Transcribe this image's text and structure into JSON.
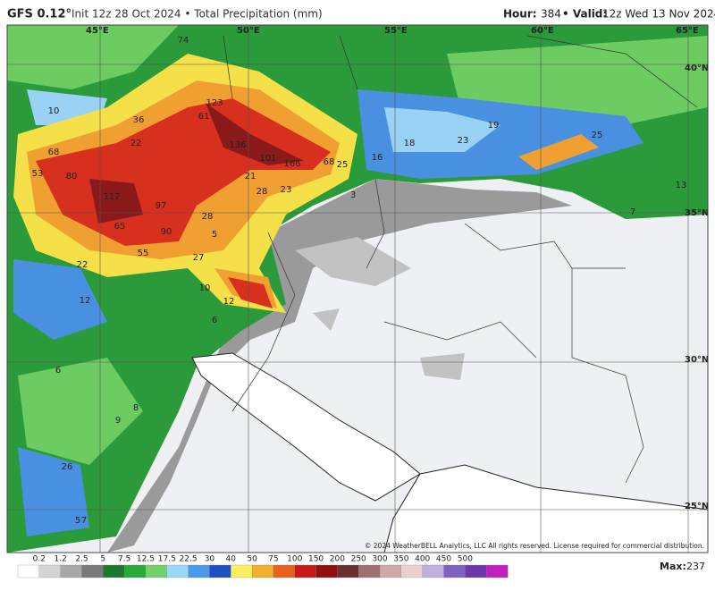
{
  "header": {
    "model": "GFS 0.12°",
    "title": "Init 12z 28 Oct 2024 • Total Precipitation (mm)",
    "hour_label": "Hour:",
    "hour": "384",
    "valid_label": "• Valid:",
    "valid": "12z Wed 13 Nov 2024"
  },
  "graticule": [
    "45°E",
    "50°E",
    "55°E",
    "60°E",
    "65°E",
    "40°N",
    "35°N",
    "30°N",
    "25°N"
  ],
  "map_values": [
    "74",
    "123",
    "61",
    "136",
    "101",
    "166",
    "68",
    "25",
    "16",
    "18",
    "19",
    "23",
    "25",
    "13",
    "7",
    "3",
    "80",
    "68",
    "53",
    "117",
    "97",
    "65",
    "90",
    "55",
    "27",
    "28",
    "21",
    "28",
    "23",
    "36",
    "22",
    "10",
    "22",
    "12",
    "10",
    "12",
    "6",
    "6",
    "9",
    "8",
    "26",
    "7",
    "5",
    "5"
  ],
  "copyright": "© 2024 WeatherBELL Analytics, LLC All rights reserved. License required for commercial distribution.",
  "colorbar": {
    "labels": [
      "0.2",
      "1.2",
      "2.5",
      "5",
      "7.5",
      "12.5",
      "17.5",
      "22.5",
      "30",
      "40",
      "50",
      "75",
      "100",
      "150",
      "200",
      "250",
      "300",
      "350",
      "400",
      "450",
      "500"
    ],
    "colors": [
      "#ffffff",
      "#d4d4d4",
      "#a8a8a8",
      "#7a7a7a",
      "#1e7a2a",
      "#2aa83a",
      "#74d06a",
      "#9ad8f8",
      "#4a9ae8",
      "#2050c0",
      "#f8f060",
      "#f0b030",
      "#e86020",
      "#c81818",
      "#901010",
      "#6a3030",
      "#a07070",
      "#d0a8a8",
      "#e8d0d0",
      "#c0b0e0",
      "#8060c0",
      "#6a3aa8",
      "#c020c0"
    ]
  },
  "max_label": "Max:",
  "max": "237"
}
